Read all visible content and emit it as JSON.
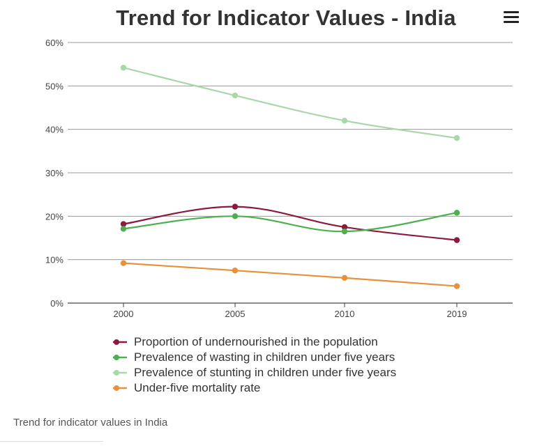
{
  "header": {
    "title": "Trend for Indicator Values - India"
  },
  "menu": {
    "icon": "hamburger-menu-icon"
  },
  "caption": "Trend for indicator values in India",
  "chart_data": {
    "type": "line",
    "title": "Trend for Indicator Values - India",
    "xlabel": "",
    "ylabel": "",
    "categories": [
      "2000",
      "2005",
      "2010",
      "2019"
    ],
    "ylim": [
      0,
      60
    ],
    "y_ticks": [
      "0%",
      "10%",
      "20%",
      "30%",
      "40%",
      "50%",
      "60%"
    ],
    "grid": true,
    "legend_position": "bottom",
    "series": [
      {
        "name": "Proportion of undernourished in the population",
        "color": "#8b1a3e",
        "values": [
          18.2,
          22.2,
          17.5,
          14.5
        ]
      },
      {
        "name": "Prevalence of wasting in children under five years",
        "color": "#4caf50",
        "values": [
          17.1,
          20.0,
          16.5,
          20.8
        ]
      },
      {
        "name": "Prevalence of stunting in children under five years",
        "color": "#a8d8a8",
        "values": [
          54.2,
          47.8,
          42.0,
          38.0
        ]
      },
      {
        "name": "Under-five mortality rate",
        "color": "#e8913c",
        "values": [
          9.2,
          7.5,
          5.8,
          3.9
        ]
      }
    ]
  }
}
